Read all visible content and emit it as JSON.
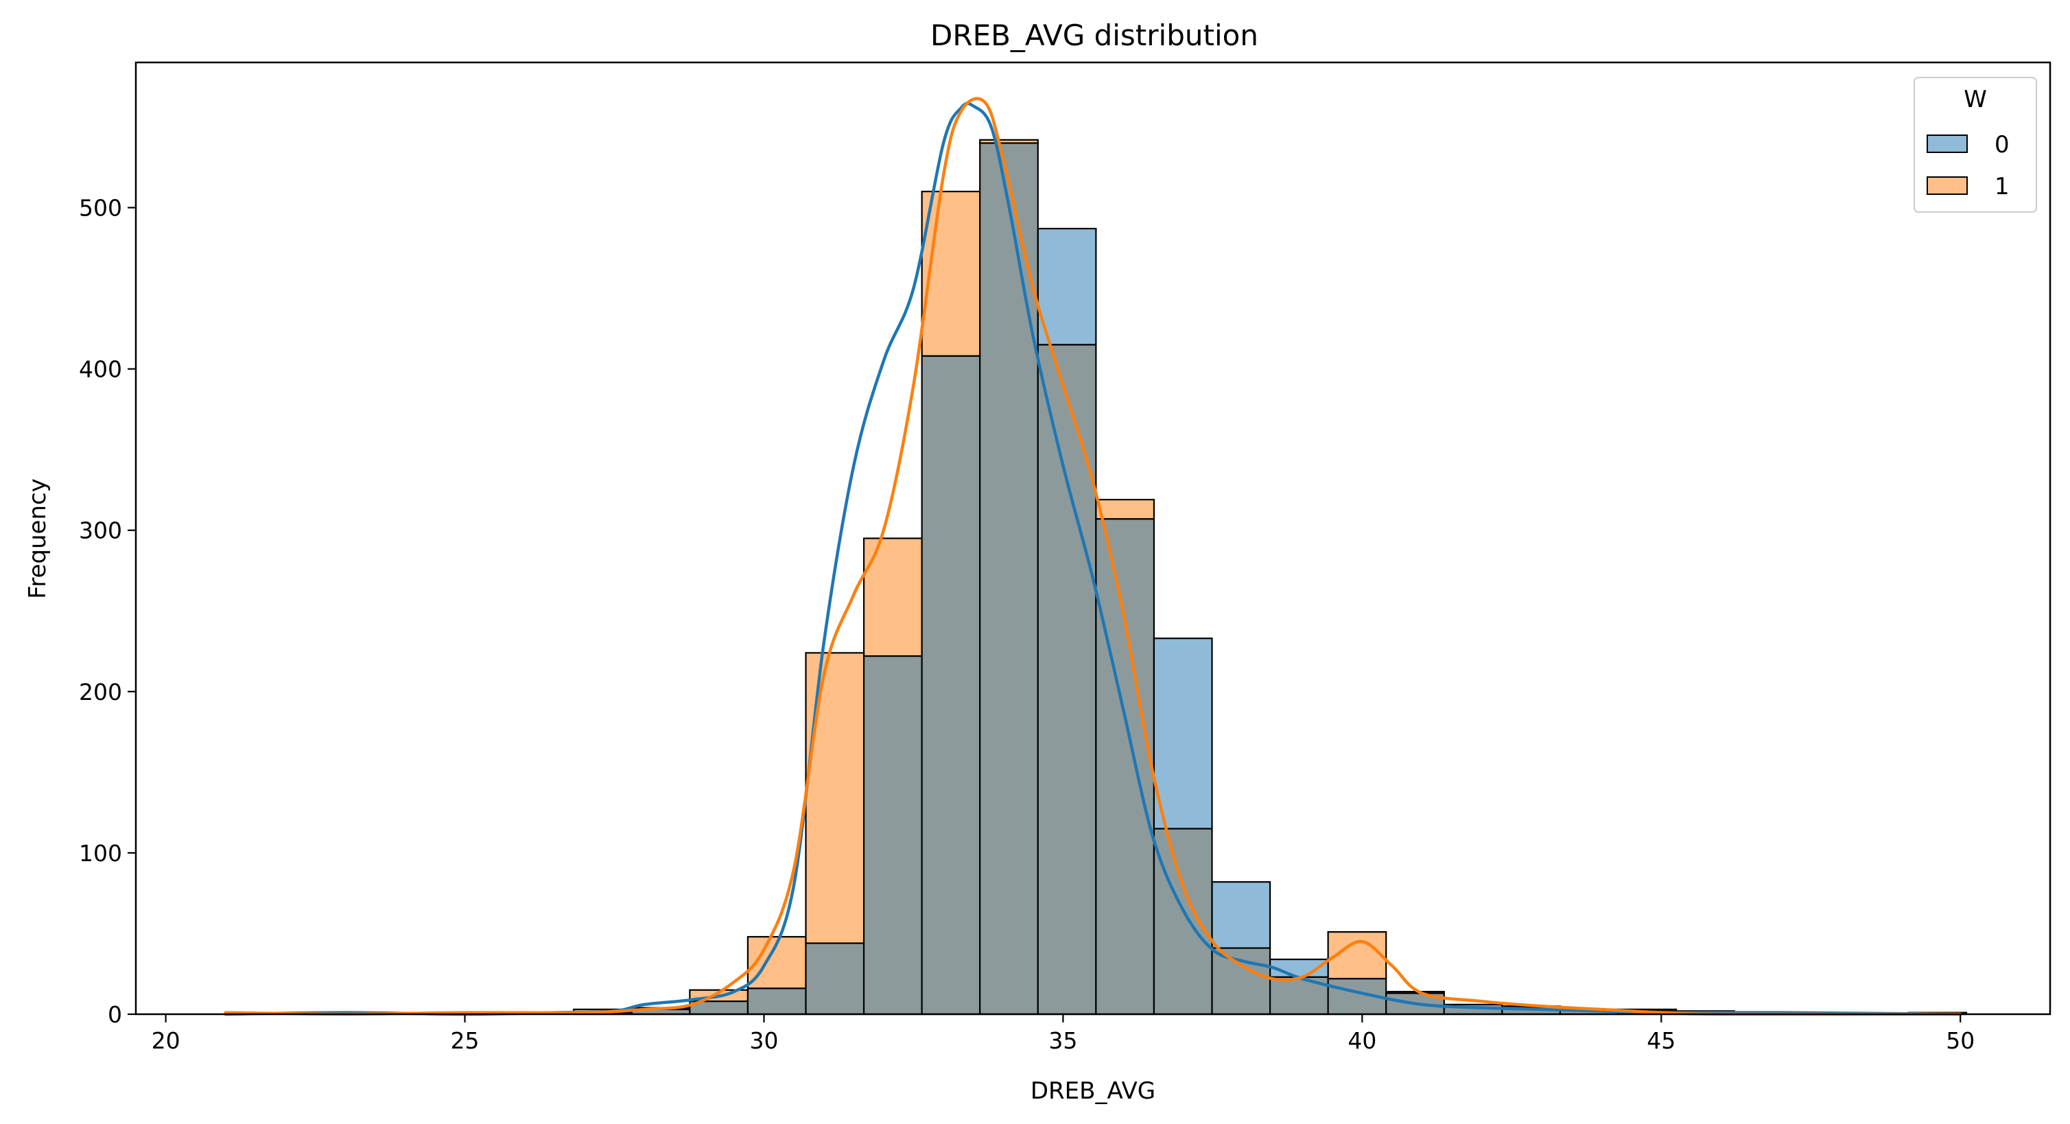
{
  "chart_data": {
    "type": "histogram",
    "title": "DREB_AVG distribution",
    "xlabel": "DREB_AVG",
    "ylabel": "Frequency",
    "xlim": [
      19.5,
      51.5
    ],
    "ylim": [
      0,
      590
    ],
    "x_ticks": [
      20,
      25,
      30,
      35,
      40,
      45,
      50
    ],
    "y_ticks": [
      0,
      100,
      200,
      300,
      400,
      500
    ],
    "bin_edges": [
      21.0,
      21.97,
      22.94,
      23.91,
      24.88,
      25.85,
      26.82,
      27.79,
      28.76,
      29.73,
      30.7,
      31.67,
      32.64,
      33.61,
      34.58,
      35.55,
      36.52,
      37.49,
      38.46,
      39.43,
      40.4,
      41.37,
      42.34,
      43.31,
      44.28,
      45.25,
      46.22,
      47.19,
      48.16,
      49.13,
      50.1
    ],
    "legend": {
      "title": "W",
      "placement": "upper right"
    },
    "colors": {
      "0": "#1f77b4",
      "1": "#ff7f0e",
      "overlap": "#8c9a9c"
    },
    "series": [
      {
        "name": "0",
        "counts": [
          0,
          0,
          1,
          0,
          0,
          0,
          1,
          3,
          8,
          16,
          44,
          222,
          408,
          540,
          487,
          307,
          233,
          82,
          34,
          22,
          13,
          6,
          4,
          3,
          2,
          1,
          1,
          0,
          0,
          1
        ],
        "kde_x": [
          21,
          23,
          25,
          26.5,
          27.5,
          28,
          28.8,
          29.5,
          30,
          30.5,
          31,
          31.5,
          32,
          32.5,
          33,
          33.3,
          33.5,
          33.8,
          34.1,
          34.5,
          35,
          35.5,
          36,
          36.5,
          37,
          37.5,
          38,
          38.5,
          39,
          40,
          41,
          42,
          43,
          44,
          45,
          47,
          50
        ],
        "kde_y": [
          0,
          1,
          0,
          1,
          2,
          6,
          9,
          14,
          30,
          80,
          230,
          340,
          405,
          450,
          540,
          562,
          563,
          550,
          500,
          420,
          340,
          270,
          190,
          110,
          65,
          40,
          33,
          29,
          22,
          13,
          6,
          4,
          3,
          2,
          1,
          1,
          0
        ]
      },
      {
        "name": "1",
        "counts": [
          1,
          0,
          0,
          1,
          0,
          0,
          3,
          4,
          15,
          48,
          224,
          295,
          510,
          542,
          415,
          319,
          115,
          41,
          23,
          51,
          14,
          6,
          5,
          3,
          3,
          2,
          1,
          0,
          0,
          1
        ],
        "kde_x": [
          21,
          23,
          25,
          27,
          28,
          28.8,
          29.5,
          30,
          30.5,
          31,
          31.5,
          32,
          32.5,
          33,
          33.3,
          33.7,
          34,
          34.5,
          35,
          35.5,
          36,
          36.5,
          37,
          37.5,
          38,
          38.5,
          39,
          39.5,
          40,
          40.5,
          41,
          42,
          43,
          44,
          45,
          46,
          50
        ],
        "kde_y": [
          1,
          0,
          1,
          1,
          3,
          6,
          20,
          40,
          90,
          210,
          260,
          300,
          390,
          520,
          560,
          565,
          530,
          450,
          390,
          330,
          250,
          150,
          80,
          45,
          30,
          22,
          23,
          35,
          45,
          30,
          13,
          8,
          5,
          3,
          1,
          0,
          0
        ]
      }
    ]
  }
}
